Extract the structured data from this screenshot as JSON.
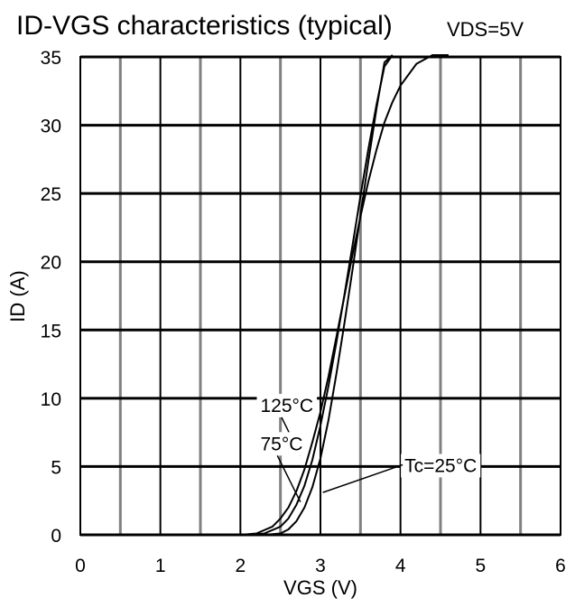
{
  "chart_data": {
    "type": "line",
    "title": "ID-VGS characteristics (typical)",
    "condition": "VDS=5V",
    "xlabel": "VGS (V)",
    "ylabel": "ID (A)",
    "xlim": [
      0,
      6
    ],
    "ylim": [
      0,
      35
    ],
    "x_ticks": [
      0,
      1,
      2,
      3,
      4,
      5,
      6
    ],
    "y_ticks": [
      0,
      5,
      10,
      15,
      20,
      25,
      30,
      35
    ],
    "x_minor_gridlines": [
      0.5,
      1.5,
      2.5,
      3.5,
      4.5,
      5.5
    ],
    "grid": true,
    "series": [
      {
        "name": "125°C",
        "x": [
          2.0,
          2.2,
          2.4,
          2.5,
          2.6,
          2.7,
          2.8,
          2.9,
          3.0,
          3.1,
          3.2,
          3.3,
          3.4,
          3.5,
          3.6,
          3.7,
          3.8,
          3.9,
          4.0,
          4.2,
          4.4,
          4.6
        ],
        "y": [
          0.0,
          0.1,
          0.6,
          1.2,
          2.0,
          3.2,
          4.8,
          6.8,
          9.0,
          11.6,
          14.5,
          17.5,
          20.5,
          23.3,
          25.9,
          28.2,
          30.2,
          31.7,
          32.9,
          34.5,
          35.5,
          36.0
        ]
      },
      {
        "name": "75°C",
        "x": [
          2.1,
          2.3,
          2.5,
          2.6,
          2.7,
          2.8,
          2.9,
          3.0,
          3.1,
          3.2,
          3.3,
          3.4,
          3.5,
          3.6,
          3.7,
          3.8,
          3.9
        ],
        "y": [
          0.0,
          0.1,
          0.6,
          1.2,
          2.2,
          3.6,
          5.5,
          8.0,
          10.9,
          14.1,
          17.6,
          21.2,
          24.8,
          28.3,
          31.5,
          34.3,
          36.0
        ]
      },
      {
        "name": "Tc=25°C",
        "x": [
          2.3,
          2.5,
          2.6,
          2.7,
          2.8,
          2.9,
          3.0,
          3.1,
          3.2,
          3.3,
          3.4,
          3.5,
          3.6,
          3.7,
          3.8,
          3.9
        ],
        "y": [
          0.0,
          0.1,
          0.4,
          1.0,
          2.0,
          3.5,
          5.6,
          8.4,
          11.8,
          15.5,
          19.4,
          23.4,
          27.4,
          31.2,
          34.6,
          36.0
        ]
      }
    ],
    "annotations": [
      {
        "text": "125°C",
        "x": 2.25,
        "y": 9.0,
        "target_x": 2.75,
        "target_y": 5.8
      },
      {
        "text": "75°C",
        "x": 2.25,
        "y": 6.2,
        "target_x": 2.75,
        "target_y": 2.4
      },
      {
        "text": "Tc=25°C",
        "x": 4.05,
        "y": 4.6,
        "target_x": 3.03,
        "target_y": 3.1
      }
    ]
  }
}
